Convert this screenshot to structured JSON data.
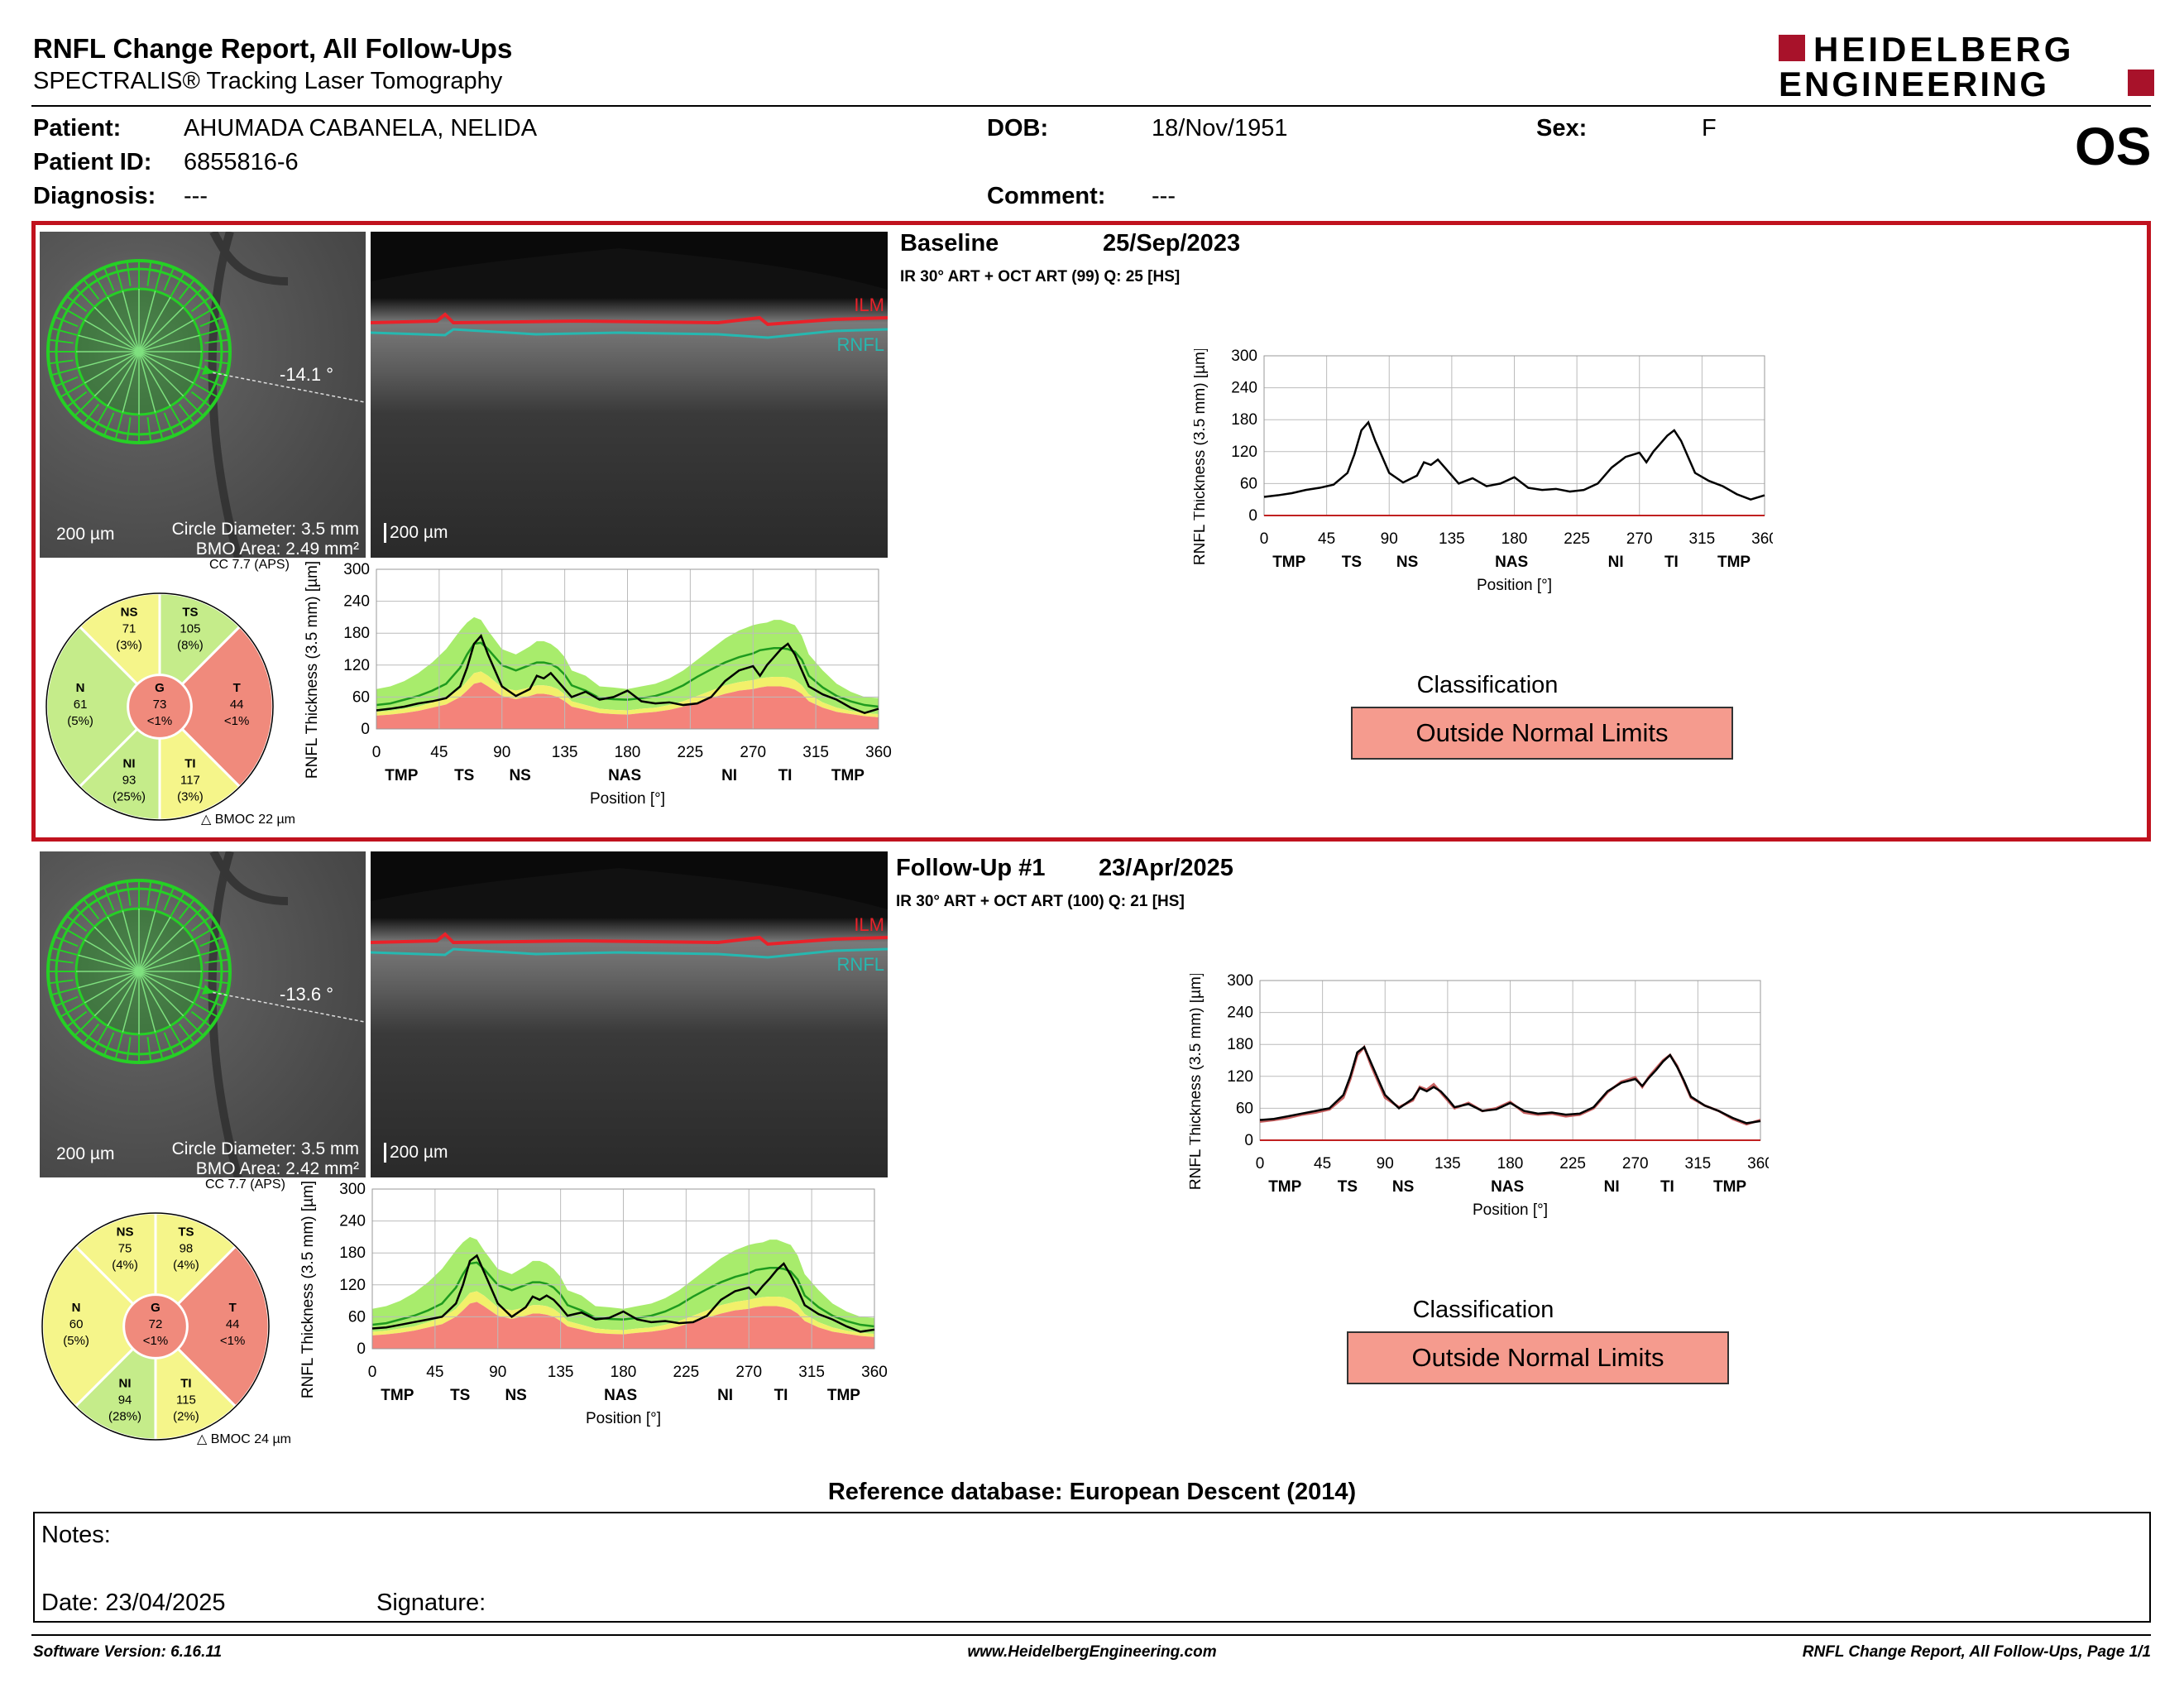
{
  "header": {
    "title": "RNFL Change Report, All Follow-Ups",
    "subtitle": "SPECTRALIS® Tracking Laser Tomography",
    "logo_line1": "HEIDELBERG",
    "logo_line2": "ENGINEERING"
  },
  "patient": {
    "patient_label": "Patient:",
    "patient_value": "AHUMADA CABANELA, NELIDA",
    "id_label": "Patient ID:",
    "id_value": "6855816-6",
    "diagnosis_label": "Diagnosis:",
    "diagnosis_value": "---",
    "dob_label": "DOB:",
    "dob_value": "18/Nov/1951",
    "comment_label": "Comment:",
    "comment_value": "---",
    "sex_label": "Sex:",
    "sex_value": "F",
    "eye": "OS"
  },
  "exams": [
    {
      "name": "Baseline",
      "date": "25/Sep/2023",
      "scan_info": "IR 30° ART + OCT ART (99) Q: 25 [HS]",
      "angle": "-14.1 °",
      "scale_fundus": "200 µm",
      "scale_oct": "200 µm",
      "circle_diameter": "Circle Diameter: 3.5 mm",
      "bmo_area": "BMO Area: 2.49 mm²",
      "cc": "CC 7.7 (APS)",
      "bmoc": "BMOC 22 µm",
      "layer_ilm": "ILM",
      "layer_rnfl": "RNFL",
      "classification_label": "Classification",
      "classification": "Outside Normal Limits",
      "sectors": {
        "NS": {
          "name": "NS",
          "value": "71",
          "pct": "(3%)",
          "color": "#f5f58a"
        },
        "TS": {
          "name": "TS",
          "value": "105",
          "pct": "(8%)",
          "color": "#c5ec8a"
        },
        "N": {
          "name": "N",
          "value": "61",
          "pct": "(5%)",
          "color": "#c5ec8a"
        },
        "G": {
          "name": "G",
          "value": "73",
          "pct": "<1%",
          "color": "#f08a7c"
        },
        "T": {
          "name": "T",
          "value": "44",
          "pct": "<1%",
          "color": "#f08a7c"
        },
        "NI": {
          "name": "NI",
          "value": "93",
          "pct": "(25%)",
          "color": "#c5ec8a"
        },
        "TI": {
          "name": "TI",
          "value": "117",
          "pct": "(3%)",
          "color": "#f5f58a"
        }
      }
    },
    {
      "name": "Follow-Up #1",
      "date": "23/Apr/2025",
      "scan_info": "IR 30° ART + OCT ART (100) Q: 21 [HS]",
      "angle": "-13.6 °",
      "scale_fundus": "200 µm",
      "scale_oct": "200 µm",
      "circle_diameter": "Circle Diameter: 3.5 mm",
      "bmo_area": "BMO Area: 2.42 mm²",
      "cc": "CC 7.7 (APS)",
      "bmoc": "BMOC 24 µm",
      "layer_ilm": "ILM",
      "layer_rnfl": "RNFL",
      "classification_label": "Classification",
      "classification": "Outside Normal Limits",
      "sectors": {
        "NS": {
          "name": "NS",
          "value": "75",
          "pct": "(4%)",
          "color": "#f5f58a"
        },
        "TS": {
          "name": "TS",
          "value": "98",
          "pct": "(4%)",
          "color": "#f5f58a"
        },
        "N": {
          "name": "N",
          "value": "60",
          "pct": "(5%)",
          "color": "#f5f58a"
        },
        "G": {
          "name": "G",
          "value": "72",
          "pct": "<1%",
          "color": "#f08a7c"
        },
        "T": {
          "name": "T",
          "value": "44",
          "pct": "<1%",
          "color": "#f08a7c"
        },
        "NI": {
          "name": "NI",
          "value": "94",
          "pct": "(28%)",
          "color": "#c5ec8a"
        },
        "TI": {
          "name": "TI",
          "value": "115",
          "pct": "(2%)",
          "color": "#f5f58a"
        }
      }
    }
  ],
  "chart_data": {
    "type": "line",
    "x_ticks": [
      0,
      45,
      90,
      135,
      180,
      225,
      270,
      315,
      360
    ],
    "y_ticks": [
      0,
      60,
      120,
      180,
      240,
      300
    ],
    "xlim": [
      0,
      360
    ],
    "ylim": [
      0,
      300
    ],
    "xlabel": "Position [°]",
    "ylabel": "RNFL Thickness (3.5 mm) [µm]",
    "sectors": [
      {
        "label": "TMP",
        "x": 18
      },
      {
        "label": "TS",
        "x": 63
      },
      {
        "label": "NS",
        "x": 103
      },
      {
        "label": "NAS",
        "x": 178
      },
      {
        "label": "NI",
        "x": 253
      },
      {
        "label": "TI",
        "x": 293
      },
      {
        "label": "TMP",
        "x": 338
      }
    ],
    "x": [
      0,
      10,
      20,
      30,
      40,
      50,
      60,
      65,
      70,
      75,
      80,
      90,
      100,
      110,
      115,
      120,
      125,
      130,
      135,
      140,
      150,
      160,
      170,
      180,
      190,
      200,
      210,
      220,
      230,
      240,
      250,
      260,
      270,
      275,
      280,
      285,
      290,
      295,
      300,
      305,
      310,
      320,
      330,
      340,
      350,
      360
    ],
    "series": [
      {
        "values": [
          35,
          38,
          42,
          48,
          52,
          58,
          80,
          115,
          160,
          175,
          140,
          80,
          62,
          75,
          100,
          95,
          105,
          90,
          75,
          60,
          70,
          55,
          60,
          72,
          52,
          48,
          50,
          45,
          48,
          60,
          90,
          110,
          118,
          100,
          120,
          135,
          150,
          160,
          140,
          110,
          80,
          65,
          55,
          40,
          30,
          38
        ]
      },
      {
        "values": [
          38,
          40,
          45,
          50,
          55,
          60,
          85,
          120,
          165,
          175,
          145,
          85,
          60,
          78,
          98,
          92,
          100,
          92,
          78,
          62,
          68,
          55,
          58,
          70,
          55,
          50,
          52,
          48,
          50,
          62,
          92,
          108,
          115,
          102,
          118,
          132,
          148,
          160,
          138,
          112,
          82,
          65,
          55,
          42,
          32,
          36
        ]
      }
    ],
    "normative": {
      "upper_green": [
        75,
        80,
        90,
        105,
        125,
        150,
        185,
        200,
        210,
        205,
        185,
        150,
        140,
        155,
        165,
        165,
        160,
        150,
        135,
        110,
        100,
        80,
        78,
        75,
        80,
        85,
        95,
        110,
        130,
        150,
        170,
        185,
        195,
        198,
        200,
        205,
        205,
        200,
        195,
        175,
        140,
        110,
        85,
        70,
        60,
        58
      ],
      "median": [
        45,
        48,
        55,
        62,
        72,
        85,
        115,
        140,
        160,
        162,
        150,
        120,
        110,
        120,
        125,
        125,
        122,
        115,
        102,
        82,
        72,
        58,
        56,
        55,
        58,
        62,
        70,
        82,
        98,
        112,
        125,
        135,
        142,
        148,
        150,
        152,
        152,
        150,
        145,
        130,
        100,
        78,
        62,
        52,
        45,
        42
      ],
      "lower_yellow": [
        32,
        34,
        38,
        42,
        50,
        58,
        75,
        90,
        105,
        108,
        100,
        78,
        72,
        78,
        82,
        82,
        80,
        75,
        65,
        52,
        45,
        38,
        36,
        35,
        38,
        40,
        45,
        52,
        62,
        72,
        82,
        88,
        92,
        95,
        97,
        98,
        98,
        97,
        92,
        82,
        65,
        50,
        40,
        34,
        30,
        28
      ],
      "lower_red": [
        25,
        27,
        30,
        34,
        40,
        46,
        60,
        72,
        85,
        88,
        80,
        62,
        56,
        62,
        66,
        66,
        64,
        60,
        52,
        42,
        36,
        30,
        28,
        27,
        30,
        32,
        36,
        42,
        50,
        58,
        66,
        72,
        75,
        78,
        80,
        80,
        80,
        78,
        74,
        66,
        52,
        40,
        32,
        28,
        24,
        22
      ]
    }
  },
  "reference_db": "Reference database: European Descent (2014)",
  "notes": {
    "notes_label": "Notes:",
    "date_label": "Date: 23/04/2025",
    "signature_label": "Signature:"
  },
  "footer": {
    "software": "Software Version: 6.16.11",
    "website": "www.HeidelbergEngineering.com",
    "page": "RNFL Change Report, All Follow-Ups, Page 1/1"
  }
}
